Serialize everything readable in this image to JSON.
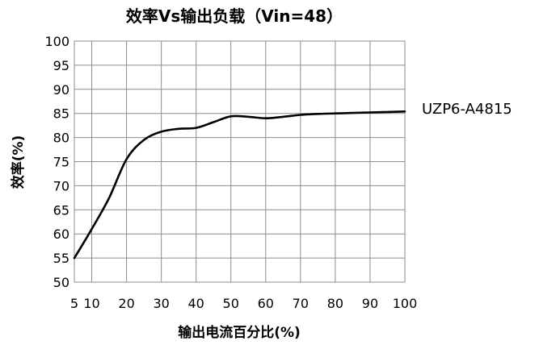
{
  "chart_data": {
    "type": "line",
    "title": "效率Vs输出负载（Vin=48）",
    "xlabel": "输出电流百分比(%)",
    "ylabel": "效率(%)",
    "xlim": [
      5,
      100
    ],
    "ylim": [
      50,
      100
    ],
    "x_ticks": [
      "5",
      "10",
      "20",
      "30",
      "40",
      "50",
      "60",
      "70",
      "80",
      "90",
      "100"
    ],
    "y_ticks": [
      "50",
      "55",
      "60",
      "65",
      "70",
      "75",
      "80",
      "85",
      "90",
      "95",
      "100"
    ],
    "grid": true,
    "series": [
      {
        "name": "UZP6-A4815",
        "color": "#000000",
        "x": [
          5,
          10,
          15,
          20,
          25,
          30,
          35,
          40,
          45,
          50,
          55,
          60,
          65,
          70,
          75,
          80,
          85,
          90,
          95,
          100
        ],
        "y": [
          55.0,
          61.0,
          67.5,
          75.5,
          79.5,
          81.2,
          81.8,
          82.0,
          83.2,
          84.4,
          84.3,
          84.0,
          84.3,
          84.7,
          84.9,
          85.0,
          85.1,
          85.2,
          85.3,
          85.4
        ]
      }
    ]
  }
}
